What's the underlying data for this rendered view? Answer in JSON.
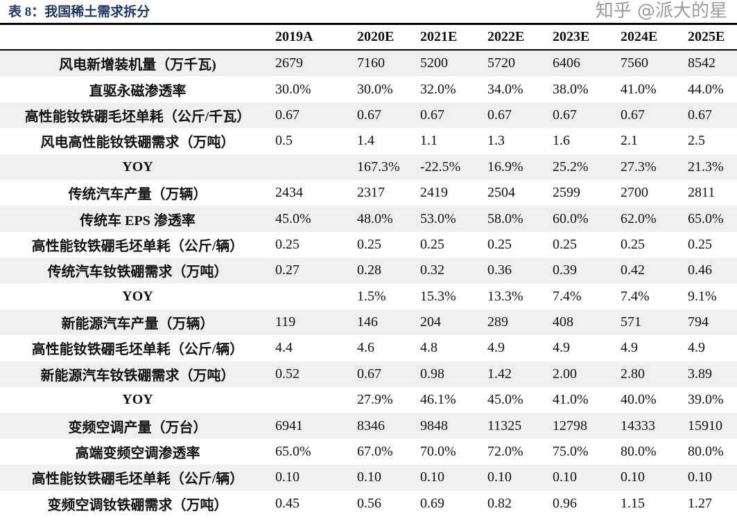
{
  "title": "表 8：我国稀土需求拆分",
  "columns": [
    "",
    "2019A",
    "2020E",
    "2021E",
    "2022E",
    "2023E",
    "2024E",
    "2025E"
  ],
  "rows": [
    {
      "label": "风电新增装机量（万千瓦)",
      "values": [
        "2679",
        "7160",
        "5200",
        "5720",
        "6406",
        "7560",
        "8542"
      ]
    },
    {
      "label": "直驱永磁渗透率",
      "values": [
        "30.0%",
        "30.0%",
        "32.0%",
        "34.0%",
        "38.0%",
        "41.0%",
        "44.0%"
      ]
    },
    {
      "label": "高性能钕铁硼毛坯单耗（公斤/千瓦）",
      "values": [
        "0.67",
        "0.67",
        "0.67",
        "0.67",
        "0.67",
        "0.67",
        "0.67"
      ]
    },
    {
      "label": "风电高性能钕铁硼需求（万吨）",
      "values": [
        "0.5",
        "1.4",
        "1.1",
        "1.3",
        "1.6",
        "2.1",
        "2.5"
      ]
    },
    {
      "label": "YOY",
      "values": [
        "",
        "167.3%",
        "-22.5%",
        "16.9%",
        "25.2%",
        "27.3%",
        "21.3%"
      ]
    },
    {
      "label": "传统汽车产量（万辆）",
      "values": [
        "2434",
        "2317",
        "2419",
        "2504",
        "2599",
        "2700",
        "2811"
      ]
    },
    {
      "label": "传统车 EPS 渗透率",
      "values": [
        "45.0%",
        "48.0%",
        "53.0%",
        "58.0%",
        "60.0%",
        "62.0%",
        "65.0%"
      ]
    },
    {
      "label": "高性能钕铁硼毛坯单耗（公斤/辆）",
      "values": [
        "0.25",
        "0.25",
        "0.25",
        "0.25",
        "0.25",
        "0.25",
        "0.25"
      ]
    },
    {
      "label": "传统汽车钕铁硼需求（万吨）",
      "values": [
        "0.27",
        "0.28",
        "0.32",
        "0.36",
        "0.39",
        "0.42",
        "0.46"
      ]
    },
    {
      "label": "YOY",
      "values": [
        "",
        "1.5%",
        "15.3%",
        "13.3%",
        "7.4%",
        "7.4%",
        "9.1%"
      ]
    },
    {
      "label": "新能源汽车产量（万辆）",
      "values": [
        "119",
        "146",
        "204",
        "289",
        "408",
        "571",
        "794"
      ]
    },
    {
      "label": "高性能钕铁硼毛坯单耗（公斤/辆）",
      "values": [
        "4.4",
        "4.6",
        "4.8",
        "4.9",
        "4.9",
        "4.9",
        "4.9"
      ]
    },
    {
      "label": "新能源汽车钕铁硼需求（万吨）",
      "values": [
        "0.52",
        "0.67",
        "0.98",
        "1.42",
        "2.00",
        "2.80",
        "3.89"
      ]
    },
    {
      "label": "YOY",
      "values": [
        "",
        "27.9%",
        "46.1%",
        "45.0%",
        "41.0%",
        "40.0%",
        "39.0%"
      ]
    },
    {
      "label": "变频空调产量（万台）",
      "values": [
        "6941",
        "8346",
        "9848",
        "11325",
        "12798",
        "14333",
        "15910"
      ]
    },
    {
      "label": "高端变频空调渗透率",
      "values": [
        "65.0%",
        "67.0%",
        "70.0%",
        "72.0%",
        "75.0%",
        "80.0%",
        "80.0%"
      ]
    },
    {
      "label": "高性能钕铁硼毛坯单耗（公斤/辆）",
      "values": [
        "0.10",
        "0.10",
        "0.10",
        "0.10",
        "0.10",
        "0.10",
        "0.10"
      ]
    },
    {
      "label": "变频空调钕铁硼需求（万吨）",
      "values": [
        "0.45",
        "0.56",
        "0.69",
        "0.82",
        "0.96",
        "1.15",
        "1.27"
      ]
    }
  ],
  "watermark": "知乎 @派大的星"
}
